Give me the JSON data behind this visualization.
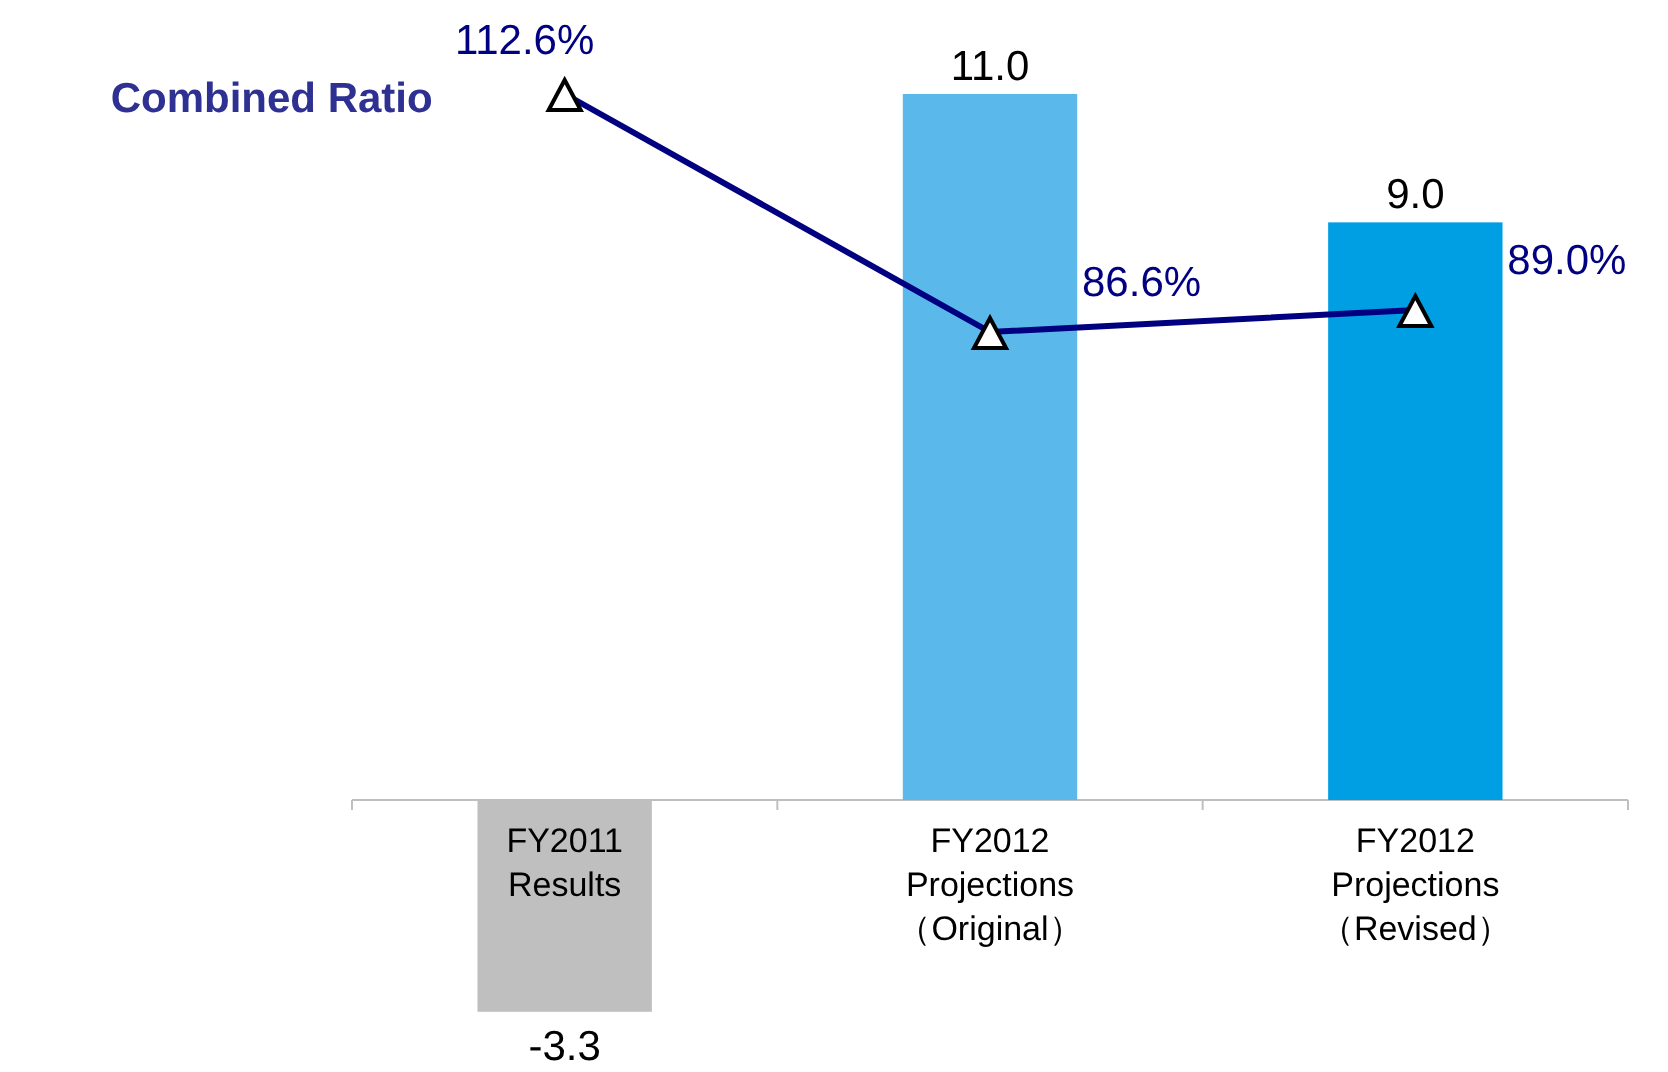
{
  "chart_data": {
    "type": "bar",
    "categories": [
      "FY2011\nResults",
      "FY2012\nProjections\n（Original）",
      "FY2012\nProjections\n（Revised）"
    ],
    "series": [
      {
        "colors": [
          "#bfbfbf",
          "#5ab8ea",
          "#009fe3"
        ],
        "values": [
          -3.3,
          11.0,
          9.0
        ],
        "value_labels": [
          "-3.3",
          "11.0",
          "9.0"
        ]
      },
      {
        "type": "line",
        "name": "Combined Ratio",
        "axis": "y2",
        "color": "#000080",
        "values": [
          112.6,
          86.6,
          89.0
        ],
        "value_labels": [
          "112.6%",
          "86.6%",
          "89.0%"
        ]
      }
    ],
    "marker": "triangle",
    "tick_labels": "x"
  }
}
